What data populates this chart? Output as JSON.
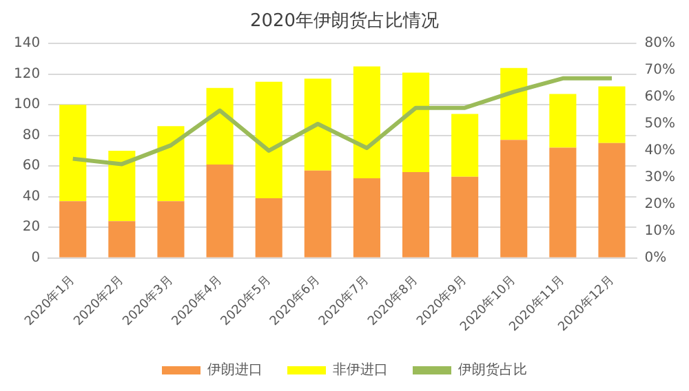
{
  "chart_data": {
    "type": "bar",
    "title": "2020年伊朗货占比情况",
    "stacked": true,
    "categories": [
      "2020年1月",
      "2020年2月",
      "2020年3月",
      "2020年4月",
      "2020年5月",
      "2020年6月",
      "2020年7月",
      "2020年8月",
      "2020年9月",
      "2020年10月",
      "2020年11月",
      "2020年12月"
    ],
    "series": [
      {
        "name": "伊朗进口",
        "color": "#f79646",
        "values": [
          37,
          24,
          37,
          61,
          39,
          57,
          52,
          56,
          53,
          77,
          72,
          75
        ]
      },
      {
        "name": "非伊进口",
        "color": "#ffff00",
        "values": [
          63,
          46,
          49,
          50,
          76,
          60,
          73,
          65,
          41,
          47,
          35,
          37
        ]
      },
      {
        "name": "伊朗货占比",
        "type": "line",
        "axis": "y2",
        "color": "#9bbb59",
        "values": [
          37,
          35,
          42,
          55,
          40,
          50,
          41,
          56,
          56,
          62,
          67,
          67
        ]
      }
    ],
    "ylim": [
      0,
      140
    ],
    "yticks": [
      0,
      20,
      40,
      60,
      80,
      100,
      120,
      140
    ],
    "y2lim": [
      0,
      80
    ],
    "y2ticks": [
      {
        "value": 0,
        "label": "0%"
      },
      {
        "value": 10,
        "label": "10%"
      },
      {
        "value": 20,
        "label": "20%"
      },
      {
        "value": 30,
        "label": "30%"
      },
      {
        "value": 40,
        "label": "40%"
      },
      {
        "value": 50,
        "label": "50%"
      },
      {
        "value": 60,
        "label": "60%"
      },
      {
        "value": 70,
        "label": "70%"
      },
      {
        "value": 80,
        "label": "80%"
      }
    ],
    "grid": "y",
    "legend": "bottom",
    "marker": "none"
  }
}
